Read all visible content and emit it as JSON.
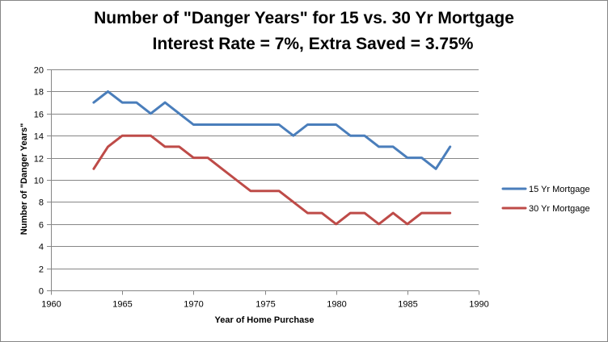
{
  "chart_data": {
    "type": "line",
    "title": "Number of \"Danger Years\" for 15 vs. 30 Yr Mortgage",
    "subtitle": "Interest Rate = 7%, Extra Saved = 3.75%",
    "xlabel": "Year of Home Purchase",
    "ylabel": "Number of \"Danger Years\"",
    "xlim": [
      1960,
      1990
    ],
    "ylim": [
      0,
      20
    ],
    "x_ticks": [
      1960,
      1965,
      1970,
      1975,
      1980,
      1985,
      1990
    ],
    "y_ticks": [
      0,
      2,
      4,
      6,
      8,
      10,
      12,
      14,
      16,
      18,
      20
    ],
    "grid": "horizontal",
    "legend_position": "right",
    "x": [
      1963,
      1964,
      1965,
      1966,
      1967,
      1968,
      1969,
      1970,
      1971,
      1972,
      1973,
      1974,
      1975,
      1976,
      1977,
      1978,
      1979,
      1980,
      1981,
      1982,
      1983,
      1984,
      1985,
      1986,
      1987,
      1988
    ],
    "series": [
      {
        "name": "15 Yr Mortgage",
        "color": "#4a7ebb",
        "values": [
          17,
          18,
          17,
          17,
          16,
          17,
          16,
          15,
          15,
          15,
          15,
          15,
          15,
          15,
          14,
          15,
          15,
          15,
          14,
          14,
          13,
          13,
          12,
          12,
          11,
          13
        ]
      },
      {
        "name": "30 Yr Mortgage",
        "color": "#be4b48",
        "values": [
          11,
          13,
          14,
          14,
          14,
          13,
          13,
          12,
          12,
          11,
          10,
          9,
          9,
          9,
          8,
          7,
          7,
          6,
          7,
          7,
          6,
          7,
          6,
          7,
          7,
          7
        ]
      }
    ],
    "colors": {
      "gridline": "#868686",
      "axis": "#868686"
    }
  }
}
